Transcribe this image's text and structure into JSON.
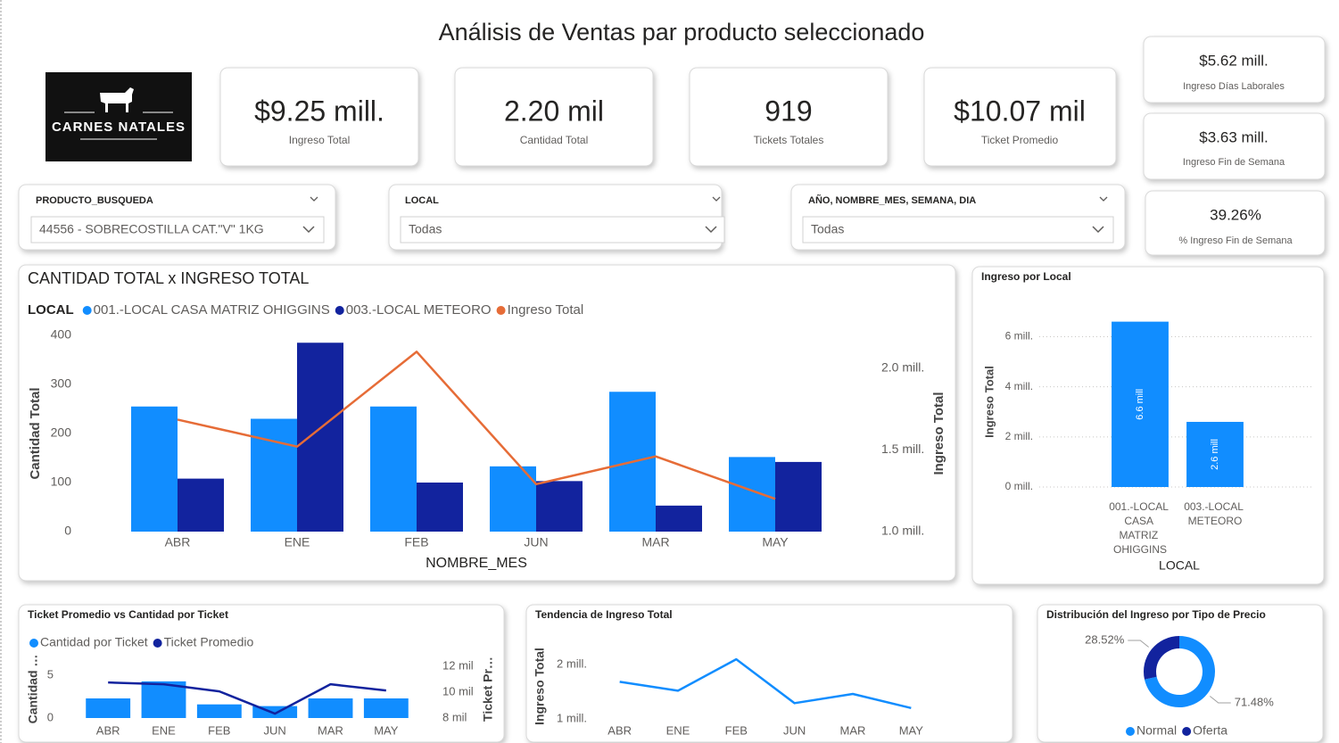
{
  "header": {
    "title": "Análisis de Ventas par producto seleccionado"
  },
  "logo": {
    "text": "CARNES NATALES"
  },
  "kpis": [
    {
      "value": "$9.25 mill.",
      "label": "Ingreso Total"
    },
    {
      "value": "2.20 mil",
      "label": "Cantidad Total"
    },
    {
      "value": "919",
      "label": "Tickets Totales"
    },
    {
      "value": "$10.07 mil",
      "label": "Ticket Promedio"
    },
    {
      "value": "$5.62 mill.",
      "label": "Ingreso Días Laborales"
    },
    {
      "value": "$3.63 mill.",
      "label": "Ingreso Fin de Semana"
    },
    {
      "value": "39.26%",
      "label": "% Ingreso Fin de Semana"
    }
  ],
  "slicers": [
    {
      "label": "PRODUCTO_BUSQUEDA",
      "value": "44556 - SOBRECOSTILLA CAT.\"V\" 1KG"
    },
    {
      "label": "LOCAL",
      "value": "Todas"
    },
    {
      "label": "AÑO, NOMBRE_MES, SEMANA, DIA",
      "value": "Todas"
    }
  ],
  "chart_data": [
    {
      "type": "combo",
      "title": "CANTIDAD TOTAL x INGRESO TOTAL",
      "legend_title": "LOCAL",
      "categories": [
        "ABR",
        "ENE",
        "FEB",
        "JUN",
        "MAR",
        "MAY"
      ],
      "series": [
        {
          "name": "001.-LOCAL CASA MATRIZ OHIGGINS",
          "type": "bar",
          "color": "#118DFF",
          "values": [
            255,
            230,
            255,
            133,
            285,
            152
          ]
        },
        {
          "name": "003.-LOCAL METEORO",
          "type": "bar",
          "color": "#12239E",
          "values": [
            108,
            385,
            100,
            103,
            53,
            142
          ]
        },
        {
          "name": "Ingreso Total",
          "type": "line",
          "axis": "y2",
          "color": "#E66C37",
          "values": [
            1685000,
            1520000,
            2100000,
            1290000,
            1460000,
            1200000
          ]
        }
      ],
      "xlabel": "NOMBRE_MES",
      "ylabel": "Cantidad Total",
      "y2label": "Ingreso Total",
      "ylim": [
        0,
        400
      ],
      "yticks": [
        0,
        100,
        200,
        300,
        400
      ],
      "y2lim": [
        1000000,
        2200000
      ],
      "y2ticks": [
        {
          "value": 1000000,
          "label": "1.0 mill."
        },
        {
          "value": 1500000,
          "label": "1.5 mill."
        },
        {
          "value": 2000000,
          "label": "2.0 mill."
        }
      ],
      "grid": false
    },
    {
      "type": "bar",
      "title": "Ingreso por Local",
      "categories": [
        "001.-LOCAL CASA MATRIZ OHIGGINS",
        "003.-LOCAL METEORO"
      ],
      "values": [
        6600000,
        2600000
      ],
      "value_labels": [
        "6.6 mill",
        "2.6 mill"
      ],
      "color": "#118DFF",
      "xlabel": "LOCAL",
      "ylabel": "Ingreso Total",
      "ylim": [
        0,
        6800000
      ],
      "yticks": [
        {
          "value": 0,
          "label": "0 mill."
        },
        {
          "value": 2000000,
          "label": "2 mill."
        },
        {
          "value": 4000000,
          "label": "4 mill."
        },
        {
          "value": 6000000,
          "label": "6 mill."
        }
      ],
      "grid": true
    },
    {
      "type": "combo",
      "title": "Ticket Promedio vs Cantidad por Ticket",
      "categories": [
        "ABR",
        "ENE",
        "FEB",
        "JUN",
        "MAR",
        "MAY"
      ],
      "series": [
        {
          "name": "Cantidad por Ticket",
          "type": "bar",
          "color": "#118DFF",
          "values": [
            2.3,
            4.3,
            1.6,
            1.4,
            2.3,
            2.3
          ]
        },
        {
          "name": "Ticket Promedio",
          "type": "line",
          "axis": "y2",
          "color": "#12239E",
          "values": [
            10760,
            10620,
            10070,
            8340,
            10620,
            10140
          ]
        }
      ],
      "ylabel": "Cantidad …",
      "y2label": "Ticket Pr…",
      "ylim": [
        0,
        6.8
      ],
      "yticks": [
        0,
        5
      ],
      "y2lim": [
        8000,
        12500
      ],
      "y2ticks": [
        {
          "value": 8000,
          "label": "8 mil"
        },
        {
          "value": 10000,
          "label": "10 mil"
        },
        {
          "value": 12000,
          "label": "12 mil"
        }
      ],
      "grid": false
    },
    {
      "type": "line",
      "title": "Tendencia de Ingreso Total",
      "categories": [
        "ABR",
        "ENE",
        "FEB",
        "JUN",
        "MAR",
        "MAY"
      ],
      "values": [
        1685000,
        1520000,
        2100000,
        1290000,
        1460000,
        1200000
      ],
      "color": "#118DFF",
      "ylabel": "Ingreso Total",
      "ylim": [
        900000,
        2300000
      ],
      "yticks": [
        {
          "value": 1000000,
          "label": "1 mill."
        },
        {
          "value": 2000000,
          "label": "2 mill."
        }
      ],
      "grid": false
    },
    {
      "type": "donut",
      "title": "Distribución del Ingreso por Tipo de Precio",
      "categories": [
        "Normal",
        "Oferta"
      ],
      "values": [
        71.48,
        28.52
      ],
      "value_labels": [
        "71.48%",
        "28.52%"
      ],
      "colors": [
        "#118DFF",
        "#12239E"
      ]
    }
  ]
}
